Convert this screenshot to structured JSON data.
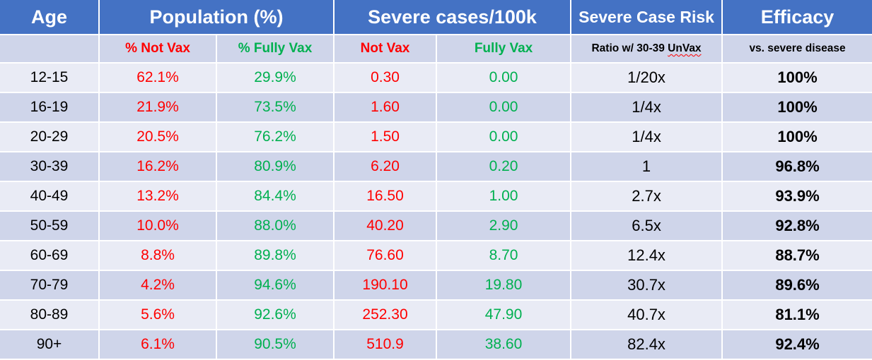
{
  "headers": {
    "age": "Age",
    "population": "Population (%)",
    "severe_cases": "Severe cases/100k",
    "risk": "Severe Case Risk",
    "efficacy": "Efficacy"
  },
  "subheaders": {
    "age": "",
    "pct_not_vax": "% Not Vax",
    "pct_fully_vax": "% Fully Vax",
    "not_vax": "Not Vax",
    "fully_vax": "Fully Vax",
    "ratio_prefix": "Ratio w/ 30-39 ",
    "ratio_unvax": "UnVax",
    "efficacy_note": "vs. severe disease"
  },
  "rows": [
    {
      "age": "12-15",
      "pct_not_vax": "62.1%",
      "pct_fully_vax": "29.9%",
      "not_vax": "0.30",
      "fully_vax": "0.00",
      "ratio": "1/20x",
      "efficacy": "100%"
    },
    {
      "age": "16-19",
      "pct_not_vax": "21.9%",
      "pct_fully_vax": "73.5%",
      "not_vax": "1.60",
      "fully_vax": "0.00",
      "ratio": "1/4x",
      "efficacy": "100%"
    },
    {
      "age": "20-29",
      "pct_not_vax": "20.5%",
      "pct_fully_vax": "76.2%",
      "not_vax": "1.50",
      "fully_vax": "0.00",
      "ratio": "1/4x",
      "efficacy": "100%"
    },
    {
      "age": "30-39",
      "pct_not_vax": "16.2%",
      "pct_fully_vax": "80.9%",
      "not_vax": "6.20",
      "fully_vax": "0.20",
      "ratio": "1",
      "efficacy": "96.8%"
    },
    {
      "age": "40-49",
      "pct_not_vax": "13.2%",
      "pct_fully_vax": "84.4%",
      "not_vax": "16.50",
      "fully_vax": "1.00",
      "ratio": "2.7x",
      "efficacy": "93.9%"
    },
    {
      "age": "50-59",
      "pct_not_vax": "10.0%",
      "pct_fully_vax": "88.0%",
      "not_vax": "40.20",
      "fully_vax": "2.90",
      "ratio": "6.5x",
      "efficacy": "92.8%"
    },
    {
      "age": "60-69",
      "pct_not_vax": "8.8%",
      "pct_fully_vax": "89.8%",
      "not_vax": "76.60",
      "fully_vax": "8.70",
      "ratio": "12.4x",
      "efficacy": "88.7%"
    },
    {
      "age": "70-79",
      "pct_not_vax": "4.2%",
      "pct_fully_vax": "94.6%",
      "not_vax": "190.10",
      "fully_vax": "19.80",
      "ratio": "30.7x",
      "efficacy": "89.6%"
    },
    {
      "age": "80-89",
      "pct_not_vax": "5.6%",
      "pct_fully_vax": "92.6%",
      "not_vax": "252.30",
      "fully_vax": "47.90",
      "ratio": "40.7x",
      "efficacy": "81.1%"
    },
    {
      "age": "90+",
      "pct_not_vax": "6.1%",
      "pct_fully_vax": "90.5%",
      "not_vax": "510.9",
      "fully_vax": "38.60",
      "ratio": "82.4x",
      "efficacy": "92.4%"
    }
  ],
  "colors": {
    "header_bg": "#4472c4",
    "band_dark": "#cfd5ea",
    "band_light": "#e9ebf5",
    "not_vax_red": "#ff0000",
    "fully_vax_green": "#00b050"
  }
}
